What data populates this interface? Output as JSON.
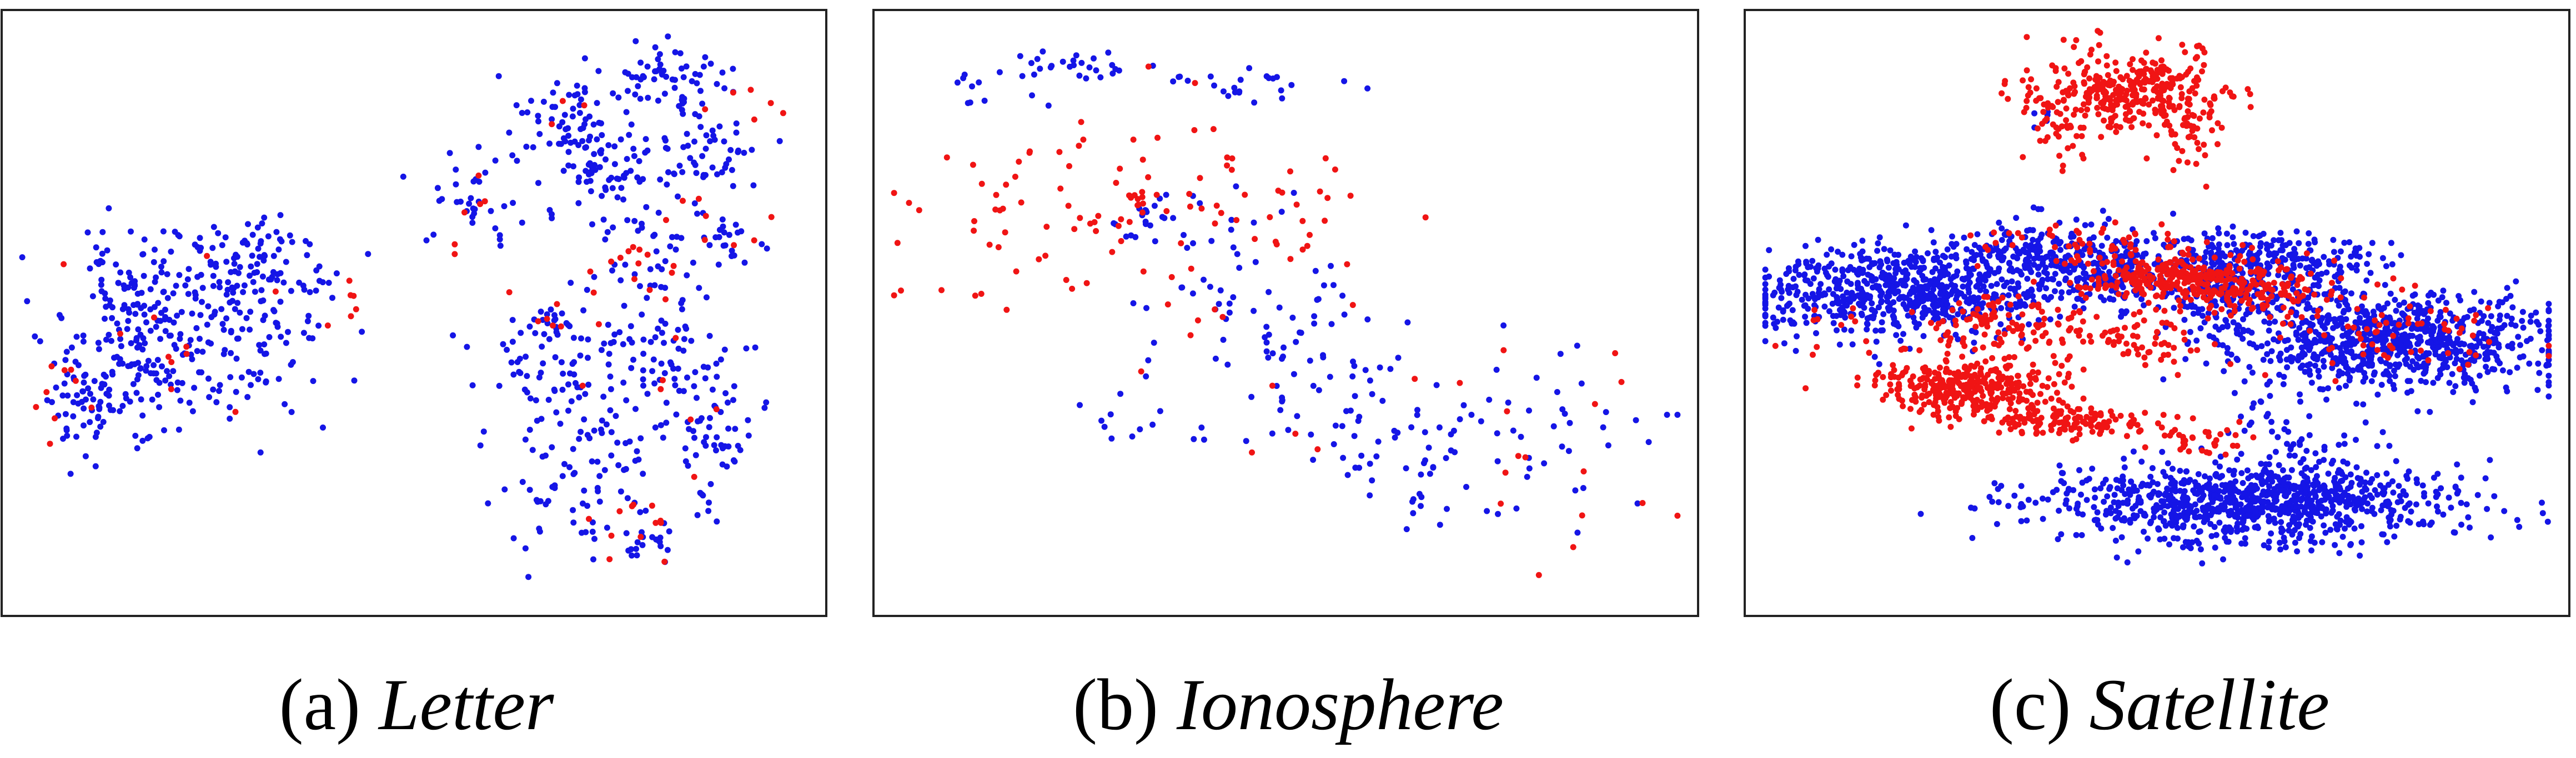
{
  "colors": {
    "majority": "#1515e6",
    "minority": "#f01414",
    "frame": "#222222"
  },
  "chart_data": [
    {
      "type": "scatter",
      "caption_prefix": "(a)",
      "caption_name": "Letter",
      "title": "",
      "xlabel": "",
      "ylabel": "",
      "axes_ticks": false,
      "grid": false,
      "legend": "none",
      "xlim": [
        0,
        100
      ],
      "ylim": [
        0,
        100
      ],
      "series": [
        {
          "color_key": "majority",
          "clusters": [
            {
              "cx": 21,
              "cy": 46,
              "sx": 8,
              "sy": 8,
              "n": 220,
              "seed": 11
            },
            {
              "cx": 13,
              "cy": 41,
              "sx": 4,
              "sy": 6,
              "n": 60,
              "seed": 12
            },
            {
              "cx": 8,
              "cy": 33,
              "sx": 3,
              "sy": 4,
              "n": 45,
              "seed": 13
            },
            {
              "cx": 15,
              "cy": 55,
              "sx": 3,
              "sy": 4,
              "n": 35,
              "seed": 14
            },
            {
              "cx": 30,
              "cy": 56,
              "sx": 5,
              "sy": 5,
              "n": 70,
              "seed": 15
            },
            {
              "cx": 24,
              "cy": 63,
              "sx": 3,
              "sy": 2,
              "n": 15,
              "seed": 16
            },
            {
              "cx": 32,
              "cy": 63,
              "sx": 2,
              "sy": 2,
              "n": 12,
              "seed": 17
            },
            {
              "cx": 70,
              "cy": 83,
              "sx": 4,
              "sy": 4,
              "n": 70,
              "seed": 18
            },
            {
              "cx": 82,
              "cy": 91,
              "sx": 4,
              "sy": 3,
              "n": 60,
              "seed": 19
            },
            {
              "cx": 74,
              "cy": 74,
              "sx": 3,
              "sy": 4,
              "n": 55,
              "seed": 20
            },
            {
              "cx": 86,
              "cy": 78,
              "sx": 4,
              "sy": 4,
              "n": 55,
              "seed": 21
            },
            {
              "cx": 58,
              "cy": 71,
              "sx": 3,
              "sy": 4,
              "n": 35,
              "seed": 22
            },
            {
              "cx": 88,
              "cy": 63,
              "sx": 3,
              "sy": 3,
              "n": 25,
              "seed": 23
            },
            {
              "cx": 80,
              "cy": 58,
              "sx": 4,
              "sy": 7,
              "n": 40,
              "seed": 24
            },
            {
              "cx": 68,
              "cy": 38,
              "sx": 5,
              "sy": 6,
              "n": 70,
              "seed": 25
            },
            {
              "cx": 82,
              "cy": 40,
              "sx": 5,
              "sy": 7,
              "n": 75,
              "seed": 26
            },
            {
              "cx": 72,
              "cy": 20,
              "sx": 5,
              "sy": 6,
              "n": 70,
              "seed": 27
            },
            {
              "cx": 89,
              "cy": 27,
              "sx": 3,
              "sy": 6,
              "n": 50,
              "seed": 28
            },
            {
              "cx": 79,
              "cy": 10,
              "sx": 2,
              "sy": 2,
              "n": 20,
              "seed": 29
            },
            {
              "cx": 67,
              "cy": 48,
              "sx": 2,
              "sy": 3,
              "n": 20,
              "seed": 30
            }
          ]
        },
        {
          "color_key": "minority",
          "clusters": [
            {
              "cx": 25,
              "cy": 45,
              "sx": 10,
              "sy": 9,
              "n": 14,
              "seed": 41
            },
            {
              "cx": 5,
              "cy": 37,
              "sx": 1.5,
              "sy": 3,
              "n": 8,
              "seed": 42
            },
            {
              "cx": 42,
              "cy": 51,
              "sx": 2,
              "sy": 2,
              "n": 4,
              "seed": 43
            },
            {
              "cx": 58,
              "cy": 66,
              "sx": 3,
              "sy": 5,
              "n": 6,
              "seed": 44
            },
            {
              "cx": 76,
              "cy": 58,
              "sx": 3,
              "sy": 2,
              "n": 8,
              "seed": 45
            },
            {
              "cx": 87,
              "cy": 65,
              "sx": 4,
              "sy": 5,
              "n": 8,
              "seed": 46
            },
            {
              "cx": 67,
              "cy": 50,
              "sx": 2,
              "sy": 2,
              "n": 6,
              "seed": 47
            },
            {
              "cx": 80,
              "cy": 12,
              "sx": 4,
              "sy": 3,
              "n": 12,
              "seed": 48
            },
            {
              "cx": 80,
              "cy": 40,
              "sx": 6,
              "sy": 15,
              "n": 14,
              "seed": 49
            },
            {
              "cx": 90,
              "cy": 85,
              "sx": 3,
              "sy": 3,
              "n": 6,
              "seed": 50
            },
            {
              "cx": 68,
              "cy": 84,
              "sx": 2,
              "sy": 2,
              "n": 3,
              "seed": 51
            }
          ]
        }
      ]
    },
    {
      "type": "scatter",
      "caption_prefix": "(b)",
      "caption_name": "Ionosphere",
      "title": "",
      "xlabel": "",
      "ylabel": "",
      "axes_ticks": false,
      "grid": false,
      "legend": "none",
      "xlim": [
        0,
        100
      ],
      "ylim": [
        0,
        100
      ],
      "series": [
        {
          "color_key": "majority",
          "clusters": [
            {
              "cx": 22,
              "cy": 93,
              "sx": 6,
              "sy": 2,
              "n": 30,
              "seed": 61
            },
            {
              "cx": 44,
              "cy": 90,
              "sx": 8,
              "sy": 2,
              "n": 24,
              "seed": 62
            },
            {
              "cx": 9,
              "cy": 88,
              "sx": 1.5,
              "sy": 1.5,
              "n": 8,
              "seed": 63
            },
            {
              "cx": 40,
              "cy": 57,
              "sx": 6,
              "sy": 8,
              "n": 40,
              "seed": 64
            },
            {
              "cx": 52,
              "cy": 42,
              "sx": 6,
              "sy": 8,
              "n": 60,
              "seed": 65
            },
            {
              "cx": 65,
              "cy": 25,
              "sx": 6,
              "sy": 5,
              "n": 55,
              "seed": 66
            },
            {
              "cx": 82,
              "cy": 30,
              "sx": 7,
              "sy": 7,
              "n": 40,
              "seed": 67
            },
            {
              "cx": 30,
              "cy": 30,
              "sx": 3,
              "sy": 3,
              "n": 12,
              "seed": 68
            },
            {
              "cx": 33,
              "cy": 67,
              "sx": 3,
              "sy": 3,
              "n": 14,
              "seed": 69
            }
          ]
        },
        {
          "color_key": "minority",
          "clusters": [
            {
              "cx": 25,
              "cy": 69,
              "sx": 12,
              "sy": 10,
              "n": 90,
              "seed": 81
            },
            {
              "cx": 50,
              "cy": 68,
              "sx": 8,
              "sy": 6,
              "n": 18,
              "seed": 82
            },
            {
              "cx": 32,
              "cy": 70,
              "sx": 1,
              "sy": 1,
              "n": 8,
              "seed": 83
            },
            {
              "cx": 68,
              "cy": 38,
              "sx": 15,
              "sy": 18,
              "n": 16,
              "seed": 84
            },
            {
              "cx": 85,
              "cy": 15,
              "sx": 8,
              "sy": 8,
              "n": 10,
              "seed": 85
            }
          ]
        }
      ]
    },
    {
      "type": "scatter",
      "caption_prefix": "(c)",
      "caption_name": "Satellite",
      "title": "",
      "xlabel": "",
      "ylabel": "",
      "axes_ticks": false,
      "grid": false,
      "legend": "none",
      "xlim": [
        0,
        100
      ],
      "ylim": [
        0,
        100
      ],
      "series": [
        {
          "color_key": "majority",
          "clusters": [
            {
              "cx": 18,
              "cy": 54,
              "sx": 9,
              "sy": 4,
              "n": 650,
              "seed": 101
            },
            {
              "cx": 44,
              "cy": 58,
              "sx": 11,
              "sy": 3.5,
              "n": 420,
              "seed": 102
            },
            {
              "cx": 80,
              "cy": 45,
              "sx": 10,
              "sy": 4,
              "n": 800,
              "seed": 103
            },
            {
              "cx": 65,
              "cy": 58,
              "sx": 6,
              "sy": 3,
              "n": 220,
              "seed": 104
            },
            {
              "cx": 62,
              "cy": 17,
              "sx": 13,
              "sy": 3.5,
              "n": 950,
              "seed": 105
            },
            {
              "cx": 68,
              "cy": 30,
              "sx": 4,
              "sy": 4,
              "n": 50,
              "seed": 106
            },
            {
              "cx": 58,
              "cy": 52,
              "sx": 3,
              "sy": 3,
              "n": 80,
              "seed": 107
            },
            {
              "cx": 33,
              "cy": 62,
              "sx": 3,
              "sy": 2,
              "n": 60,
              "seed": 108
            },
            {
              "cx": 36,
              "cy": 84,
              "sx": 1,
              "sy": 1,
              "n": 5,
              "seed": 109
            }
          ]
        },
        {
          "color_key": "minority",
          "clusters": [
            {
              "cx": 47,
              "cy": 89,
              "sx": 6,
              "sy": 3.5,
              "n": 330,
              "seed": 121
            },
            {
              "cx": 38,
              "cy": 83,
              "sx": 3,
              "sy": 4,
              "n": 45,
              "seed": 122
            },
            {
              "cx": 54,
              "cy": 82,
              "sx": 2,
              "sy": 4,
              "n": 45,
              "seed": 123
            },
            {
              "cx": 26,
              "cy": 37,
              "sx": 6,
              "sy": 2.5,
              "n": 350,
              "seed": 124
            },
            {
              "cx": 40,
              "cy": 31,
              "sx": 5,
              "sy": 1.5,
              "n": 130,
              "seed": 125
            },
            {
              "cx": 51,
              "cy": 56,
              "sx": 5,
              "sy": 2,
              "n": 220,
              "seed": 126
            },
            {
              "cx": 62,
              "cy": 55,
              "sx": 6,
              "sy": 2.5,
              "n": 150,
              "seed": 127
            },
            {
              "cx": 34,
              "cy": 48,
              "sx": 8,
              "sy": 3,
              "n": 100,
              "seed": 128
            },
            {
              "cx": 20,
              "cy": 47,
              "sx": 10,
              "sy": 3,
              "n": 40,
              "seed": 129
            },
            {
              "cx": 48,
              "cy": 45,
              "sx": 3,
              "sy": 2,
              "n": 40,
              "seed": 130
            },
            {
              "cx": 55,
              "cy": 28,
              "sx": 3,
              "sy": 1.5,
              "n": 35,
              "seed": 131
            },
            {
              "cx": 80,
              "cy": 47,
              "sx": 10,
              "sy": 4,
              "n": 70,
              "seed": 132
            },
            {
              "cx": 44,
              "cy": 62,
              "sx": 8,
              "sy": 2,
              "n": 60,
              "seed": 133
            }
          ]
        }
      ]
    }
  ]
}
